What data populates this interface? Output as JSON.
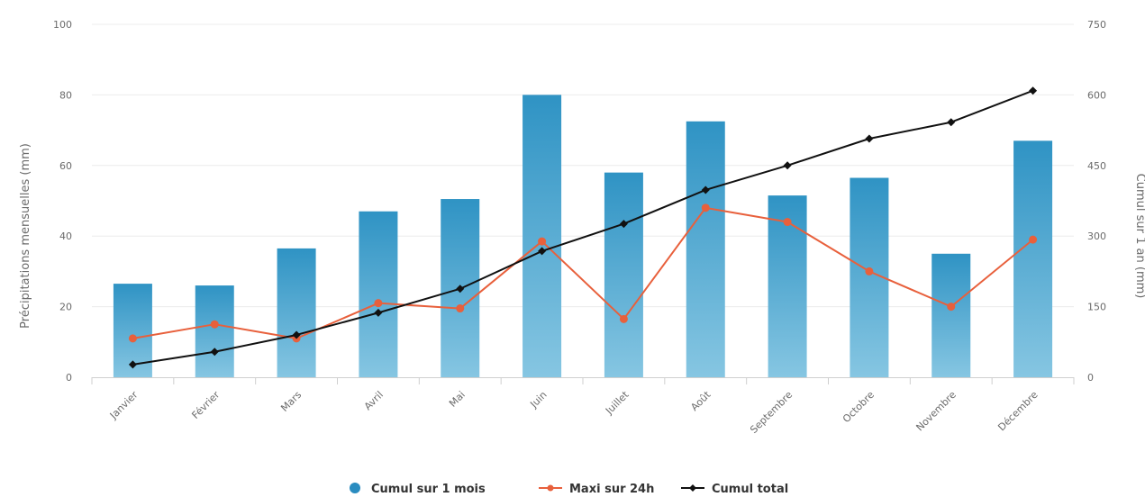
{
  "chart_data": {
    "type": "bar",
    "categories": [
      "Janvier",
      "Février",
      "Mars",
      "Avril",
      "Mai",
      "Juin",
      "Juillet",
      "Août",
      "Septembre",
      "Octobre",
      "Novembre",
      "Décembre"
    ],
    "series": [
      {
        "name": "Cumul sur 1 mois",
        "type": "bar",
        "axis": "left",
        "color": "#3a9fcc",
        "values": [
          26.5,
          26,
          36.5,
          47,
          50.5,
          80,
          58,
          72.5,
          51.5,
          56.5,
          35,
          67
        ]
      },
      {
        "name": "Maxi sur 24h",
        "type": "line",
        "axis": "left",
        "color": "#e8603c",
        "values": [
          11,
          15,
          11,
          21,
          19.5,
          38.5,
          16.5,
          48,
          44,
          30,
          20,
          39
        ]
      },
      {
        "name": "Cumul total",
        "type": "line",
        "axis": "right",
        "color": "#111111",
        "values": [
          27,
          54,
          90,
          137,
          188,
          268,
          326,
          398,
          450,
          507,
          542,
          609
        ]
      }
    ],
    "ylabel": "Précipitations mensuelles (mm)",
    "y2label": "Cumul sur 1 an (mm)",
    "ylim": [
      0,
      100
    ],
    "y2lim": [
      0,
      750
    ],
    "yticks": [
      "0",
      "20",
      "40",
      "60",
      "80",
      "100"
    ],
    "y2ticks": [
      "0",
      "150",
      "300",
      "450",
      "600",
      "750"
    ],
    "grid": true,
    "legend_position": "bottom-center"
  }
}
